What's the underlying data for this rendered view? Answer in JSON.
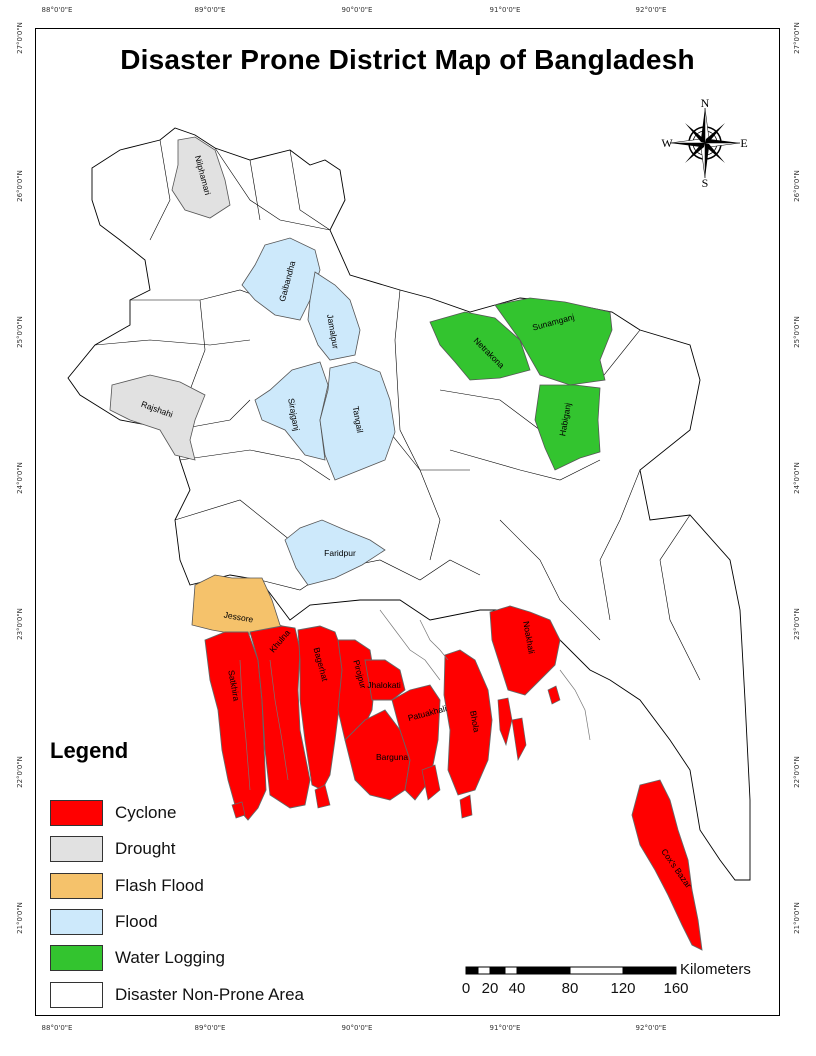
{
  "title": "Disaster Prone District Map of Bangladesh",
  "graticule": {
    "top": [
      "88°0'0\"E",
      "89°0'0\"E",
      "90°0'0\"E",
      "91°0'0\"E",
      "92°0'0\"E"
    ],
    "bottom": [
      "88°0'0\"E",
      "89°0'0\"E",
      "90°0'0\"E",
      "91°0'0\"E",
      "92°0'0\"E"
    ],
    "left": [
      "27°0'0\"N",
      "26°0'0\"N",
      "25°0'0\"N",
      "24°0'0\"N",
      "23°0'0\"N",
      "22°0'0\"N",
      "21°0'0\"N"
    ],
    "right": [
      "27°0'0\"N",
      "26°0'0\"N",
      "25°0'0\"N",
      "24°0'0\"N",
      "23°0'0\"N",
      "22°0'0\"N",
      "21°0'0\"N"
    ]
  },
  "colors": {
    "cyclone": "#ff0000",
    "drought": "#e1e1e1",
    "flash_flood": "#f5c26b",
    "flood": "#cde9fb",
    "water_logging": "#33c42f",
    "non_prone": "#ffffff"
  },
  "legend": {
    "title": "Legend",
    "items": [
      {
        "label": "Cyclone",
        "color": "#ff0000"
      },
      {
        "label": "Drought",
        "color": "#e1e1e1"
      },
      {
        "label": "Flash Flood",
        "color": "#f5c26b"
      },
      {
        "label": "Flood",
        "color": "#cde9fb"
      },
      {
        "label": "Water Logging",
        "color": "#33c42f"
      },
      {
        "label": "Disaster Non-Prone Area",
        "color": "#ffffff"
      }
    ]
  },
  "districts": {
    "nilphamari": "Nilphamari",
    "gaibandha": "Gaibandha",
    "jamalpur": "Jamalpur",
    "rajshahi": "Rajshahi",
    "sirajganj": "Sirajganj",
    "tangail": "Tangail",
    "netrakona": "Netrakona",
    "sunamganj": "Sunamganj",
    "habiganj": "Habiganj",
    "faridpur": "Faridpur",
    "jessore": "Jessore",
    "khulna": "Khulna",
    "satkhira": "Satkhira",
    "bagerhat": "Bagerhat",
    "pirojpur": "Pirojpur",
    "jhalokati": "Jhalokati",
    "patuakhali": "Patuakhali",
    "barguna": "Barguna",
    "bhola": "Bhola",
    "noakhali": "Noakhali",
    "coxs_bazar": "Cox's Bazar"
  },
  "compass": {
    "n": "N",
    "s": "S",
    "e": "E",
    "w": "W"
  },
  "scale_bar": {
    "unit": "Kilometers",
    "ticks": [
      "0",
      "20",
      "40",
      "80",
      "120",
      "160"
    ]
  }
}
